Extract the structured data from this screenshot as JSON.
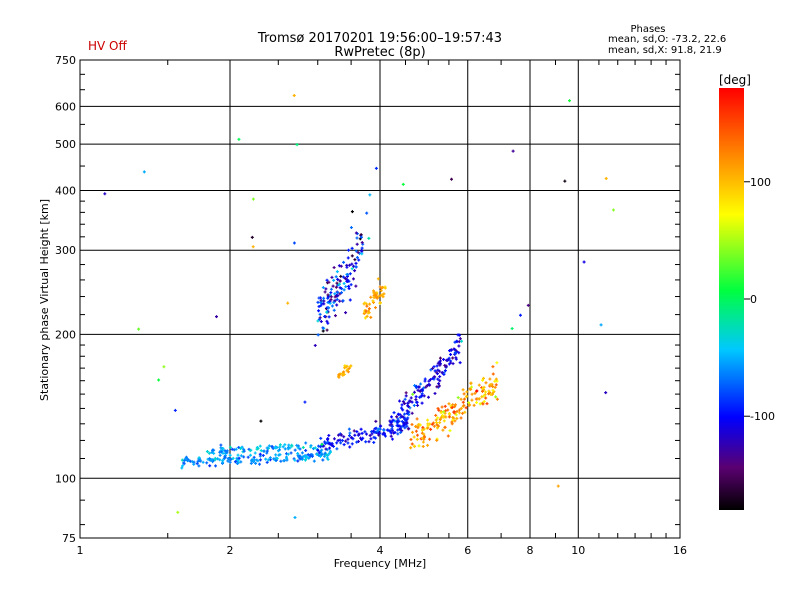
{
  "chart_data": {
    "type": "scatter",
    "title": "Tromsø 20170201 19:56:00–19:57:43",
    "subtitle": "RwPretec (8p)",
    "status": "HV Off",
    "status_color": "#cc0000",
    "stats": {
      "heading": "Phases",
      "line_o": "mean, sd,O: -73.2, 22.6",
      "line_x": "mean, sd,X:  91.8, 21.9"
    },
    "xlabel": "Frequency [MHz]",
    "ylabel": "Stationary phase Virtual Height [km]",
    "x_scale": "log",
    "y_scale": "log",
    "xlim": [
      1,
      16
    ],
    "ylim": [
      75,
      750
    ],
    "x_ticks": [
      1,
      2,
      4,
      6,
      8,
      10,
      16
    ],
    "y_ticks": [
      75,
      100,
      200,
      300,
      400,
      500,
      600,
      750
    ],
    "grid": true,
    "colorbar": {
      "label": "[deg]",
      "min": -180,
      "max": 180,
      "ticks": [
        100,
        0,
        -100
      ]
    },
    "clusters": [
      {
        "name": "o_trace_low",
        "fmin": 1.6,
        "fmax": 3.2,
        "h0": 108,
        "h1": 112,
        "spread": 0.025,
        "phase": -60,
        "psd": 15,
        "n": 160
      },
      {
        "name": "o_trace_upper",
        "fmin": 1.8,
        "fmax": 3.0,
        "h0": 114,
        "h1": 117,
        "spread": 0.02,
        "phase": -55,
        "psd": 15,
        "n": 80
      },
      {
        "name": "x_trace_mid",
        "fmin": 3.0,
        "fmax": 4.6,
        "h0": 116,
        "h1": 130,
        "spread": 0.04,
        "phase": -100,
        "psd": 18,
        "n": 140
      },
      {
        "name": "rise_blue",
        "fmin": 4.2,
        "fmax": 5.8,
        "h0": 128,
        "h1": 190,
        "spread": 0.07,
        "phase": -105,
        "psd": 20,
        "n": 160
      },
      {
        "name": "rise_yellow",
        "fmin": 4.6,
        "fmax": 6.9,
        "h0": 120,
        "h1": 160,
        "spread": 0.08,
        "phase": 110,
        "psd": 25,
        "n": 180
      },
      {
        "name": "f_layer_blue",
        "fmin": 3.0,
        "fmax": 3.7,
        "h0": 215,
        "h1": 305,
        "spread": 0.12,
        "phase": -100,
        "psd": 35,
        "n": 150
      },
      {
        "name": "f_layer_yellow",
        "fmin": 3.7,
        "fmax": 4.1,
        "h0": 220,
        "h1": 250,
        "spread": 0.06,
        "phase": 110,
        "psd": 15,
        "n": 50
      },
      {
        "name": "spot_yellow",
        "fmin": 3.3,
        "fmax": 3.5,
        "h0": 165,
        "h1": 172,
        "spread": 0.02,
        "phase": 105,
        "psd": 10,
        "n": 20
      },
      {
        "name": "scatter_misc",
        "fmin": 1.0,
        "fmax": 12.0,
        "h0": 80,
        "h1": 650,
        "spread": 0.5,
        "phase": -20,
        "psd": 80,
        "n": 45
      }
    ]
  }
}
